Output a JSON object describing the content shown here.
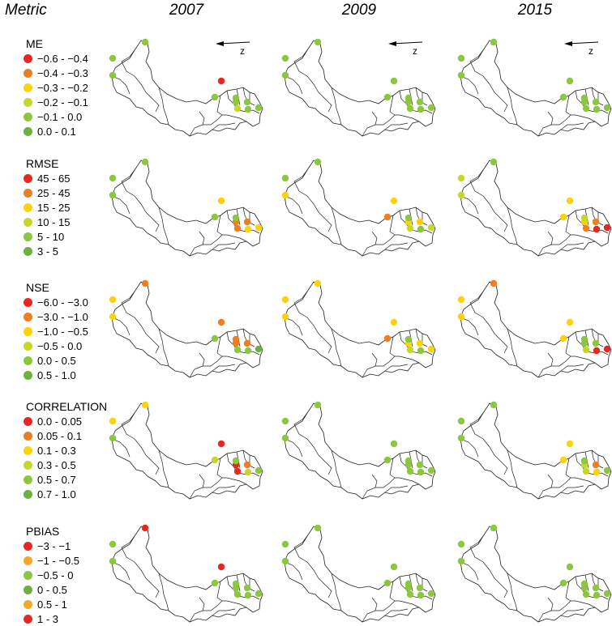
{
  "header": {
    "metric_label": "Metric",
    "years": [
      "2007",
      "2009",
      "2015"
    ]
  },
  "palette": {
    "red": "#e8271f",
    "orange": "#ef7d22",
    "yellow": "#fcd20a",
    "yellowgreen": "#c6d72a",
    "lightgreen": "#8dc63f",
    "green": "#6ab23b",
    "amber": "#f9a825"
  },
  "north_arrow_label": "z",
  "metrics": [
    {
      "name": "ME",
      "legend": [
        {
          "label": "−0.6 - −0.4",
          "color": "red"
        },
        {
          "label": "−0.4 - −0.3",
          "color": "orange"
        },
        {
          "label": "−0.3 - −0.2",
          "color": "yellow"
        },
        {
          "label": "−0.2 - −0.1",
          "color": "yellowgreen"
        },
        {
          "label": "−0.1 - 0.0",
          "color": "lightgreen"
        },
        {
          "label": "0.0 - 0.1",
          "color": "green"
        }
      ],
      "stations": [
        [
          "lightgreen",
          "lightgreen",
          "lightgreen",
          "red",
          "lightgreen",
          "lightgreen",
          "lightgreen",
          "yellowgreen",
          "lightgreen",
          "lightgreen",
          "lightgreen"
        ],
        [
          "lightgreen",
          "lightgreen",
          "lightgreen",
          "lightgreen",
          "lightgreen",
          "lightgreen",
          "lightgreen",
          "lightgreen",
          "lightgreen",
          "lightgreen",
          "lightgreen"
        ],
        [
          "lightgreen",
          "lightgreen",
          "lightgreen",
          "lightgreen",
          "lightgreen",
          "lightgreen",
          "lightgreen",
          "lightgreen",
          "lightgreen",
          "lightgreen",
          "lightgreen"
        ]
      ]
    },
    {
      "name": "RMSE",
      "legend": [
        {
          "label": "45 - 65",
          "color": "red"
        },
        {
          "label": "25 - 45",
          "color": "orange"
        },
        {
          "label": "15 - 25",
          "color": "yellow"
        },
        {
          "label": "10 - 15",
          "color": "yellowgreen"
        },
        {
          "label": "5 - 10",
          "color": "lightgreen"
        },
        {
          "label": "3 - 5",
          "color": "green"
        }
      ],
      "stations": [
        [
          "lightgreen",
          "lightgreen",
          "lightgreen",
          "yellow",
          "lightgreen",
          "orange",
          "orange",
          "orange",
          "yellow",
          "lightgreen",
          "yellow"
        ],
        [
          "lightgreen",
          "lightgreen",
          "yellow",
          "yellow",
          "orange",
          "yellow",
          "yellow",
          "yellowgreen",
          "lightgreen",
          "lightgreen",
          "yellowgreen"
        ],
        [
          "lightgreen",
          "yellowgreen",
          "yellowgreen",
          "yellow",
          "yellow",
          "yellow",
          "orange",
          "orange",
          "red",
          "yellowgreen",
          "red"
        ]
      ]
    },
    {
      "name": "NSE",
      "legend": [
        {
          "label": "−6.0 - −3.0",
          "color": "red"
        },
        {
          "label": "−3.0 - −1.0",
          "color": "orange"
        },
        {
          "label": "−1.0 - −0.5",
          "color": "yellow"
        },
        {
          "label": "−0.5 - 0.0",
          "color": "yellowgreen"
        },
        {
          "label": "0.0 - 0.5",
          "color": "lightgreen"
        },
        {
          "label": "0.5 - 1.0",
          "color": "green"
        }
      ],
      "stations": [
        [
          "orange",
          "yellow",
          "yellow",
          "orange",
          "lightgreen",
          "orange",
          "orange",
          "lightgreen",
          "lightgreen",
          "orange",
          "green"
        ],
        [
          "yellow",
          "yellow",
          "yellow",
          "yellow",
          "orange",
          "yellow",
          "yellow",
          "yellowgreen",
          "lightgreen",
          "lightgreen",
          "yellow"
        ],
        [
          "orange",
          "yellow",
          "yellow",
          "yellow",
          "yellow",
          "lightgreen",
          "lightgreen",
          "yellowgreen",
          "red",
          "lightgreen",
          "red"
        ]
      ]
    },
    {
      "name": "CORRELATION",
      "legend": [
        {
          "label": "0.0 - 0.05",
          "color": "red"
        },
        {
          "label": "0.05 - 0.1",
          "color": "orange"
        },
        {
          "label": "0.1 - 0.3",
          "color": "yellow"
        },
        {
          "label": "0.3 - 0.5",
          "color": "yellowgreen"
        },
        {
          "label": "0.5 - 0.7",
          "color": "lightgreen"
        },
        {
          "label": "0.7 - 1.0",
          "color": "green"
        }
      ],
      "stations": [
        [
          "yellow",
          "yellow",
          "lightgreen",
          "red",
          "yellowgreen",
          "red",
          "orange",
          "red",
          "yellowgreen",
          "lightgreen",
          "lightgreen"
        ],
        [
          "lightgreen",
          "lightgreen",
          "lightgreen",
          "lightgreen",
          "lightgreen",
          "lightgreen",
          "lightgreen",
          "lightgreen",
          "lightgreen",
          "lightgreen",
          "lightgreen"
        ],
        [
          "lightgreen",
          "lightgreen",
          "lightgreen",
          "yellow",
          "yellow",
          "yellowgreen",
          "orange",
          "yellowgreen",
          "yellow",
          "lightgreen",
          "lightgreen"
        ]
      ]
    },
    {
      "name": "PBIAS",
      "legend": [
        {
          "label": "−3 - −1",
          "color": "red"
        },
        {
          "label": "−1 - −0.5",
          "color": "amber"
        },
        {
          "label": "−0.5 - 0",
          "color": "lightgreen"
        },
        {
          "label": "0 - 0.5",
          "color": "green"
        },
        {
          "label": "0.5 - 1",
          "color": "amber"
        },
        {
          "label": "1 - 3",
          "color": "red"
        }
      ],
      "stations": [
        [
          "red",
          "lightgreen",
          "lightgreen",
          "red",
          "lightgreen",
          "lightgreen",
          "lightgreen",
          "lightgreen",
          "lightgreen",
          "lightgreen",
          "lightgreen"
        ],
        [
          "lightgreen",
          "lightgreen",
          "lightgreen",
          "lightgreen",
          "lightgreen",
          "lightgreen",
          "lightgreen",
          "lightgreen",
          "lightgreen",
          "lightgreen",
          "lightgreen"
        ],
        [
          "lightgreen",
          "lightgreen",
          "lightgreen",
          "lightgreen",
          "lightgreen",
          "lightgreen",
          "lightgreen",
          "lightgreen",
          "lightgreen",
          "lightgreen",
          "lightgreen"
        ]
      ]
    }
  ]
}
